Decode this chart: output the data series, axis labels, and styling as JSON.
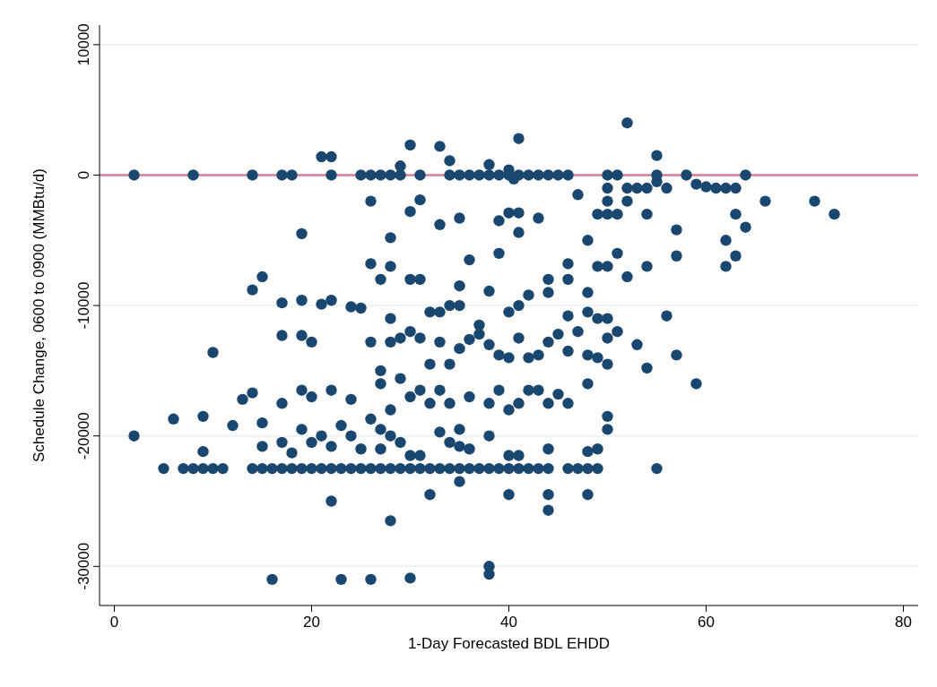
{
  "chart_data": {
    "type": "scatter",
    "xlabel": "1-Day Forecasted BDL EHDD",
    "ylabel": "Schedule Change, 0600 to 0900 (MMBtu/d)",
    "xlim": [
      -1.5,
      81.5
    ],
    "ylim": [
      -33000,
      11500
    ],
    "xticks": [
      0,
      20,
      40,
      60,
      80
    ],
    "yticks": [
      -30000,
      -20000,
      -10000,
      0,
      10000
    ],
    "grid": "y",
    "marker": "circle",
    "ref_lines": [
      {
        "axis": "y",
        "value": 0,
        "color": "#d57e95"
      }
    ],
    "series": [
      {
        "color": "#1a476f",
        "x": [
          2,
          8,
          14,
          17,
          18,
          22,
          25,
          26,
          27,
          28,
          29,
          31,
          34,
          35,
          36,
          37,
          38,
          39,
          40,
          41,
          42,
          43,
          44,
          45,
          46,
          50,
          51,
          55,
          58,
          64,
          21,
          22,
          29,
          30,
          33,
          34,
          38,
          40,
          41,
          52,
          55,
          40.5,
          26,
          31,
          30,
          33,
          35,
          39,
          40,
          41,
          41,
          43,
          47,
          50,
          50,
          50,
          49,
          51,
          52,
          52,
          53,
          54,
          55,
          56,
          54,
          59,
          60,
          61,
          62,
          63,
          63,
          64,
          66,
          71,
          73,
          19,
          28,
          36,
          39,
          44,
          46,
          46,
          48,
          49,
          50,
          51,
          54,
          57,
          57,
          62,
          62,
          63,
          52,
          14,
          15,
          17,
          19,
          21,
          22,
          24,
          25,
          26,
          27,
          28,
          30,
          31,
          32,
          33,
          34,
          35,
          35,
          37,
          38,
          40,
          41,
          42,
          44,
          46,
          48,
          48,
          49,
          50,
          50,
          51,
          53,
          56,
          57,
          59,
          54,
          10,
          17,
          19,
          20,
          26,
          28,
          28,
          29,
          30,
          31,
          32,
          33,
          34,
          35,
          36,
          37,
          38,
          39,
          40,
          41,
          42,
          43,
          44,
          45,
          46,
          47,
          48,
          49,
          50,
          13,
          14,
          17,
          19,
          20,
          22,
          24,
          26,
          27,
          27,
          28,
          29,
          30,
          31,
          32,
          33,
          34,
          35,
          36,
          38,
          39,
          40,
          41,
          42,
          43,
          44,
          45,
          46,
          48,
          50,
          50,
          6,
          9,
          12,
          15,
          19,
          20,
          21,
          22,
          23,
          24,
          25,
          27,
          27,
          28,
          29,
          30,
          31,
          33,
          34,
          35,
          36,
          38,
          40,
          41,
          44,
          48,
          49,
          2,
          9,
          15,
          17,
          18,
          5,
          7,
          8,
          9,
          10,
          11,
          14,
          15,
          16,
          17,
          18,
          19,
          20,
          21,
          22,
          23,
          24,
          25,
          26,
          27,
          28,
          29,
          30,
          31,
          32,
          33,
          34,
          35,
          36,
          37,
          38,
          39,
          40,
          41,
          42,
          43,
          44,
          46,
          47,
          48,
          49,
          55,
          22,
          28,
          32,
          35,
          40,
          44,
          44,
          48,
          16,
          23,
          26,
          30,
          38,
          38
        ],
        "values": [
          0,
          0,
          0,
          0,
          0,
          0,
          0,
          0,
          0,
          0,
          0,
          0,
          0,
          0,
          0,
          0,
          0,
          0,
          0,
          0,
          0,
          0,
          0,
          0,
          0,
          0,
          0,
          0,
          0,
          0,
          1400,
          1400,
          700,
          2300,
          2200,
          1100,
          800,
          400,
          2800,
          4000,
          1500,
          -300,
          -2000,
          -1900,
          -2800,
          -3800,
          -3300,
          -3500,
          -2900,
          -2900,
          -4400,
          -3300,
          -1500,
          -1000,
          -2000,
          -3000,
          -3000,
          -3000,
          -2000,
          -1000,
          -1000,
          -1000,
          -500,
          -1000,
          -3000,
          -700,
          -900,
          -1000,
          -1000,
          -1000,
          -3000,
          -4000,
          -2000,
          -2000,
          -3000,
          -4500,
          -4800,
          -6500,
          -6000,
          -8000,
          -6800,
          -8000,
          -5000,
          -7000,
          -7000,
          -6000,
          -7000,
          -4200,
          -6200,
          -5000,
          -7000,
          -6200,
          -7800,
          -8800,
          -7800,
          -9800,
          -9600,
          -9900,
          -9600,
          -10100,
          -10200,
          -6800,
          -8000,
          -7000,
          -8000,
          -8000,
          -10500,
          -10500,
          -10000,
          -8500,
          -10000,
          -11500,
          -8900,
          -10500,
          -10000,
          -9200,
          -9000,
          -10800,
          -9000,
          -10500,
          -11000,
          -12500,
          -11000,
          -12000,
          -13000,
          -10800,
          -13800,
          -16000,
          -14800,
          -13600,
          -12300,
          -12300,
          -12800,
          -12800,
          -11000,
          -12800,
          -12500,
          -12000,
          -12500,
          -14500,
          -12800,
          -14500,
          -13300,
          -12600,
          -12200,
          -13000,
          -13800,
          -14000,
          -12500,
          -14000,
          -13800,
          -12800,
          -12200,
          -13500,
          -12000,
          -13800,
          -14000,
          -14500,
          -17200,
          -16700,
          -17500,
          -16500,
          -17000,
          -16500,
          -17200,
          -18700,
          -15000,
          -16000,
          -18000,
          -15600,
          -17000,
          -16500,
          -17500,
          -16500,
          -17500,
          -19500,
          -17000,
          -17500,
          -16500,
          -18000,
          -17500,
          -16500,
          -16500,
          -17500,
          -16800,
          -17500,
          -16000,
          -18500,
          -19500,
          -18700,
          -18500,
          -19200,
          -19000,
          -19500,
          -20500,
          -20000,
          -20800,
          -19200,
          -20000,
          -21000,
          -19500,
          -21000,
          -20000,
          -20500,
          -21500,
          -21500,
          -19700,
          -20500,
          -20800,
          -21000,
          -20000,
          -21500,
          -21500,
          -21000,
          -21200,
          -21000,
          -20000,
          -21200,
          -20800,
          -20500,
          -21300,
          -22500,
          -22500,
          -22500,
          -22500,
          -22500,
          -22500,
          -22500,
          -22500,
          -22500,
          -22500,
          -22500,
          -22500,
          -22500,
          -22500,
          -22500,
          -22500,
          -22500,
          -22500,
          -22500,
          -22500,
          -22500,
          -22500,
          -22500,
          -22500,
          -22500,
          -22500,
          -22500,
          -22500,
          -22500,
          -22500,
          -22500,
          -22500,
          -22500,
          -22500,
          -22500,
          -22500,
          -22500,
          -22500,
          -22500,
          -22500,
          -22500,
          -22500,
          -25000,
          -26500,
          -24500,
          -23500,
          -24500,
          -24500,
          -25700,
          -24500,
          -31000,
          -31000,
          -31000,
          -30900,
          -30000,
          -30600
        ]
      }
    ]
  }
}
